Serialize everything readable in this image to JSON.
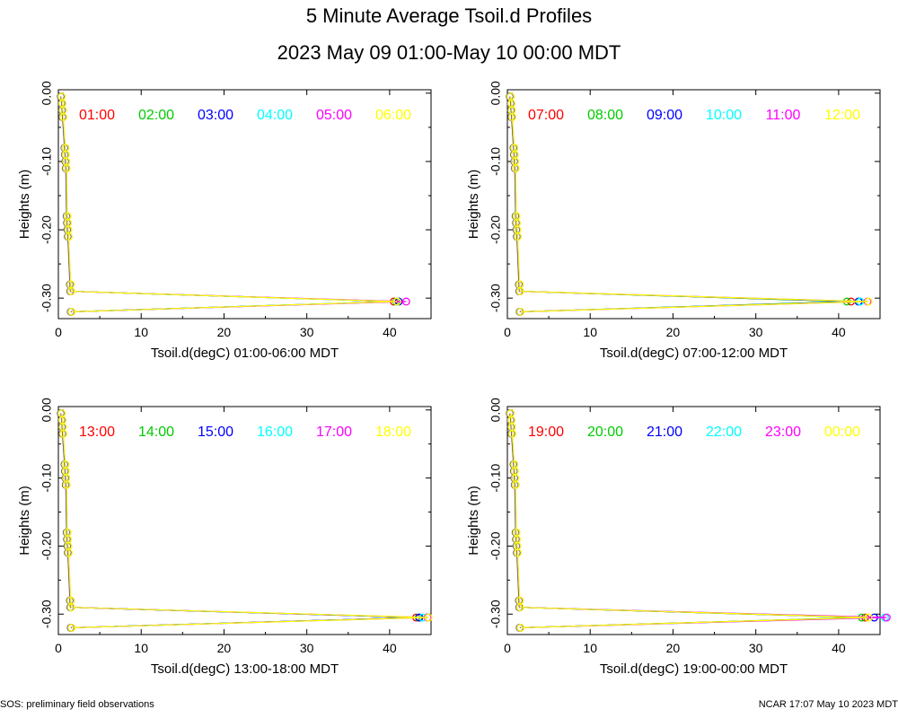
{
  "title": "5 Minute Average Tsoil.d Profiles",
  "subtitle": "2023 May 09 01:00-May 10 00:00 MDT",
  "footer_left": "SOS: preliminary field observations",
  "footer_right": "NCAR 17:07 May 10 2023 MDT",
  "colors": [
    "#ff0000",
    "#00cc00",
    "#0000ff",
    "#00ffff",
    "#ff00ff",
    "#ffff00"
  ],
  "chart_data": [
    {
      "type": "line",
      "xlabel": "Tsoil.d(degC) 01:00-06:00 MDT",
      "ylabel": "Heights (m)",
      "xlim": [
        0,
        45
      ],
      "ylim": [
        -0.33,
        0.005
      ],
      "xticks": [
        0,
        10,
        20,
        30,
        40
      ],
      "yticks": [
        "0.00",
        "-0.10",
        "-0.20",
        "-0.30"
      ],
      "legend": [
        "01:00",
        "02:00",
        "03:00",
        "04:00",
        "05:00",
        "06:00"
      ],
      "outlier": [
        40.5,
        40.8,
        41.1,
        40.9,
        42.0,
        40.9
      ]
    },
    {
      "type": "line",
      "xlabel": "Tsoil.d(degC) 07:00-12:00 MDT",
      "ylabel": "Heights (m)",
      "xlim": [
        0,
        45
      ],
      "ylim": [
        -0.33,
        0.005
      ],
      "xticks": [
        0,
        10,
        20,
        30,
        40
      ],
      "yticks": [
        "0.00",
        "-0.10",
        "-0.20",
        "-0.30"
      ],
      "legend": [
        "07:00",
        "08:00",
        "09:00",
        "10:00",
        "11:00",
        "12:00"
      ],
      "outlier": [
        41.5,
        41.0,
        42.4,
        42.6,
        43.5,
        43.6
      ]
    },
    {
      "type": "line",
      "xlabel": "Tsoil.d(degC) 13:00-18:00 MDT",
      "ylabel": "Heights (m)",
      "xlim": [
        0,
        45
      ],
      "ylim": [
        -0.33,
        0.005
      ],
      "xticks": [
        0,
        10,
        20,
        30,
        40
      ],
      "yticks": [
        "0.00",
        "-0.10",
        "-0.20",
        "-0.30"
      ],
      "legend": [
        "13:00",
        "14:00",
        "15:00",
        "16:00",
        "17:00",
        "18:00"
      ],
      "outlier": [
        43.2,
        43.5,
        43.6,
        44.0,
        44.6,
        44.7
      ]
    },
    {
      "type": "line",
      "xlabel": "Tsoil.d(degC) 19:00-00:00 MDT",
      "ylabel": "Heights (m)",
      "xlim": [
        0,
        45
      ],
      "ylim": [
        -0.33,
        0.005
      ],
      "xticks": [
        0,
        10,
        20,
        30,
        40
      ],
      "yticks": [
        "0.00",
        "-0.10",
        "-0.20",
        "-0.30"
      ],
      "legend": [
        "19:00",
        "20:00",
        "21:00",
        "22:00",
        "23:00",
        "00:00"
      ],
      "outlier": [
        43.2,
        42.8,
        44.3,
        45.6,
        45.8,
        43.6
      ]
    }
  ],
  "profile": {
    "heights": [
      -0.005,
      -0.015,
      -0.025,
      -0.035,
      -0.08,
      -0.09,
      -0.1,
      -0.11,
      -0.18,
      -0.19,
      -0.2,
      -0.21,
      -0.28,
      -0.29,
      -0.305,
      -0.32
    ],
    "temps": [
      0.3,
      0.4,
      0.45,
      0.5,
      0.75,
      0.8,
      0.85,
      0.9,
      1.0,
      1.05,
      1.1,
      1.15,
      1.4,
      1.45,
      null,
      1.5
    ]
  }
}
